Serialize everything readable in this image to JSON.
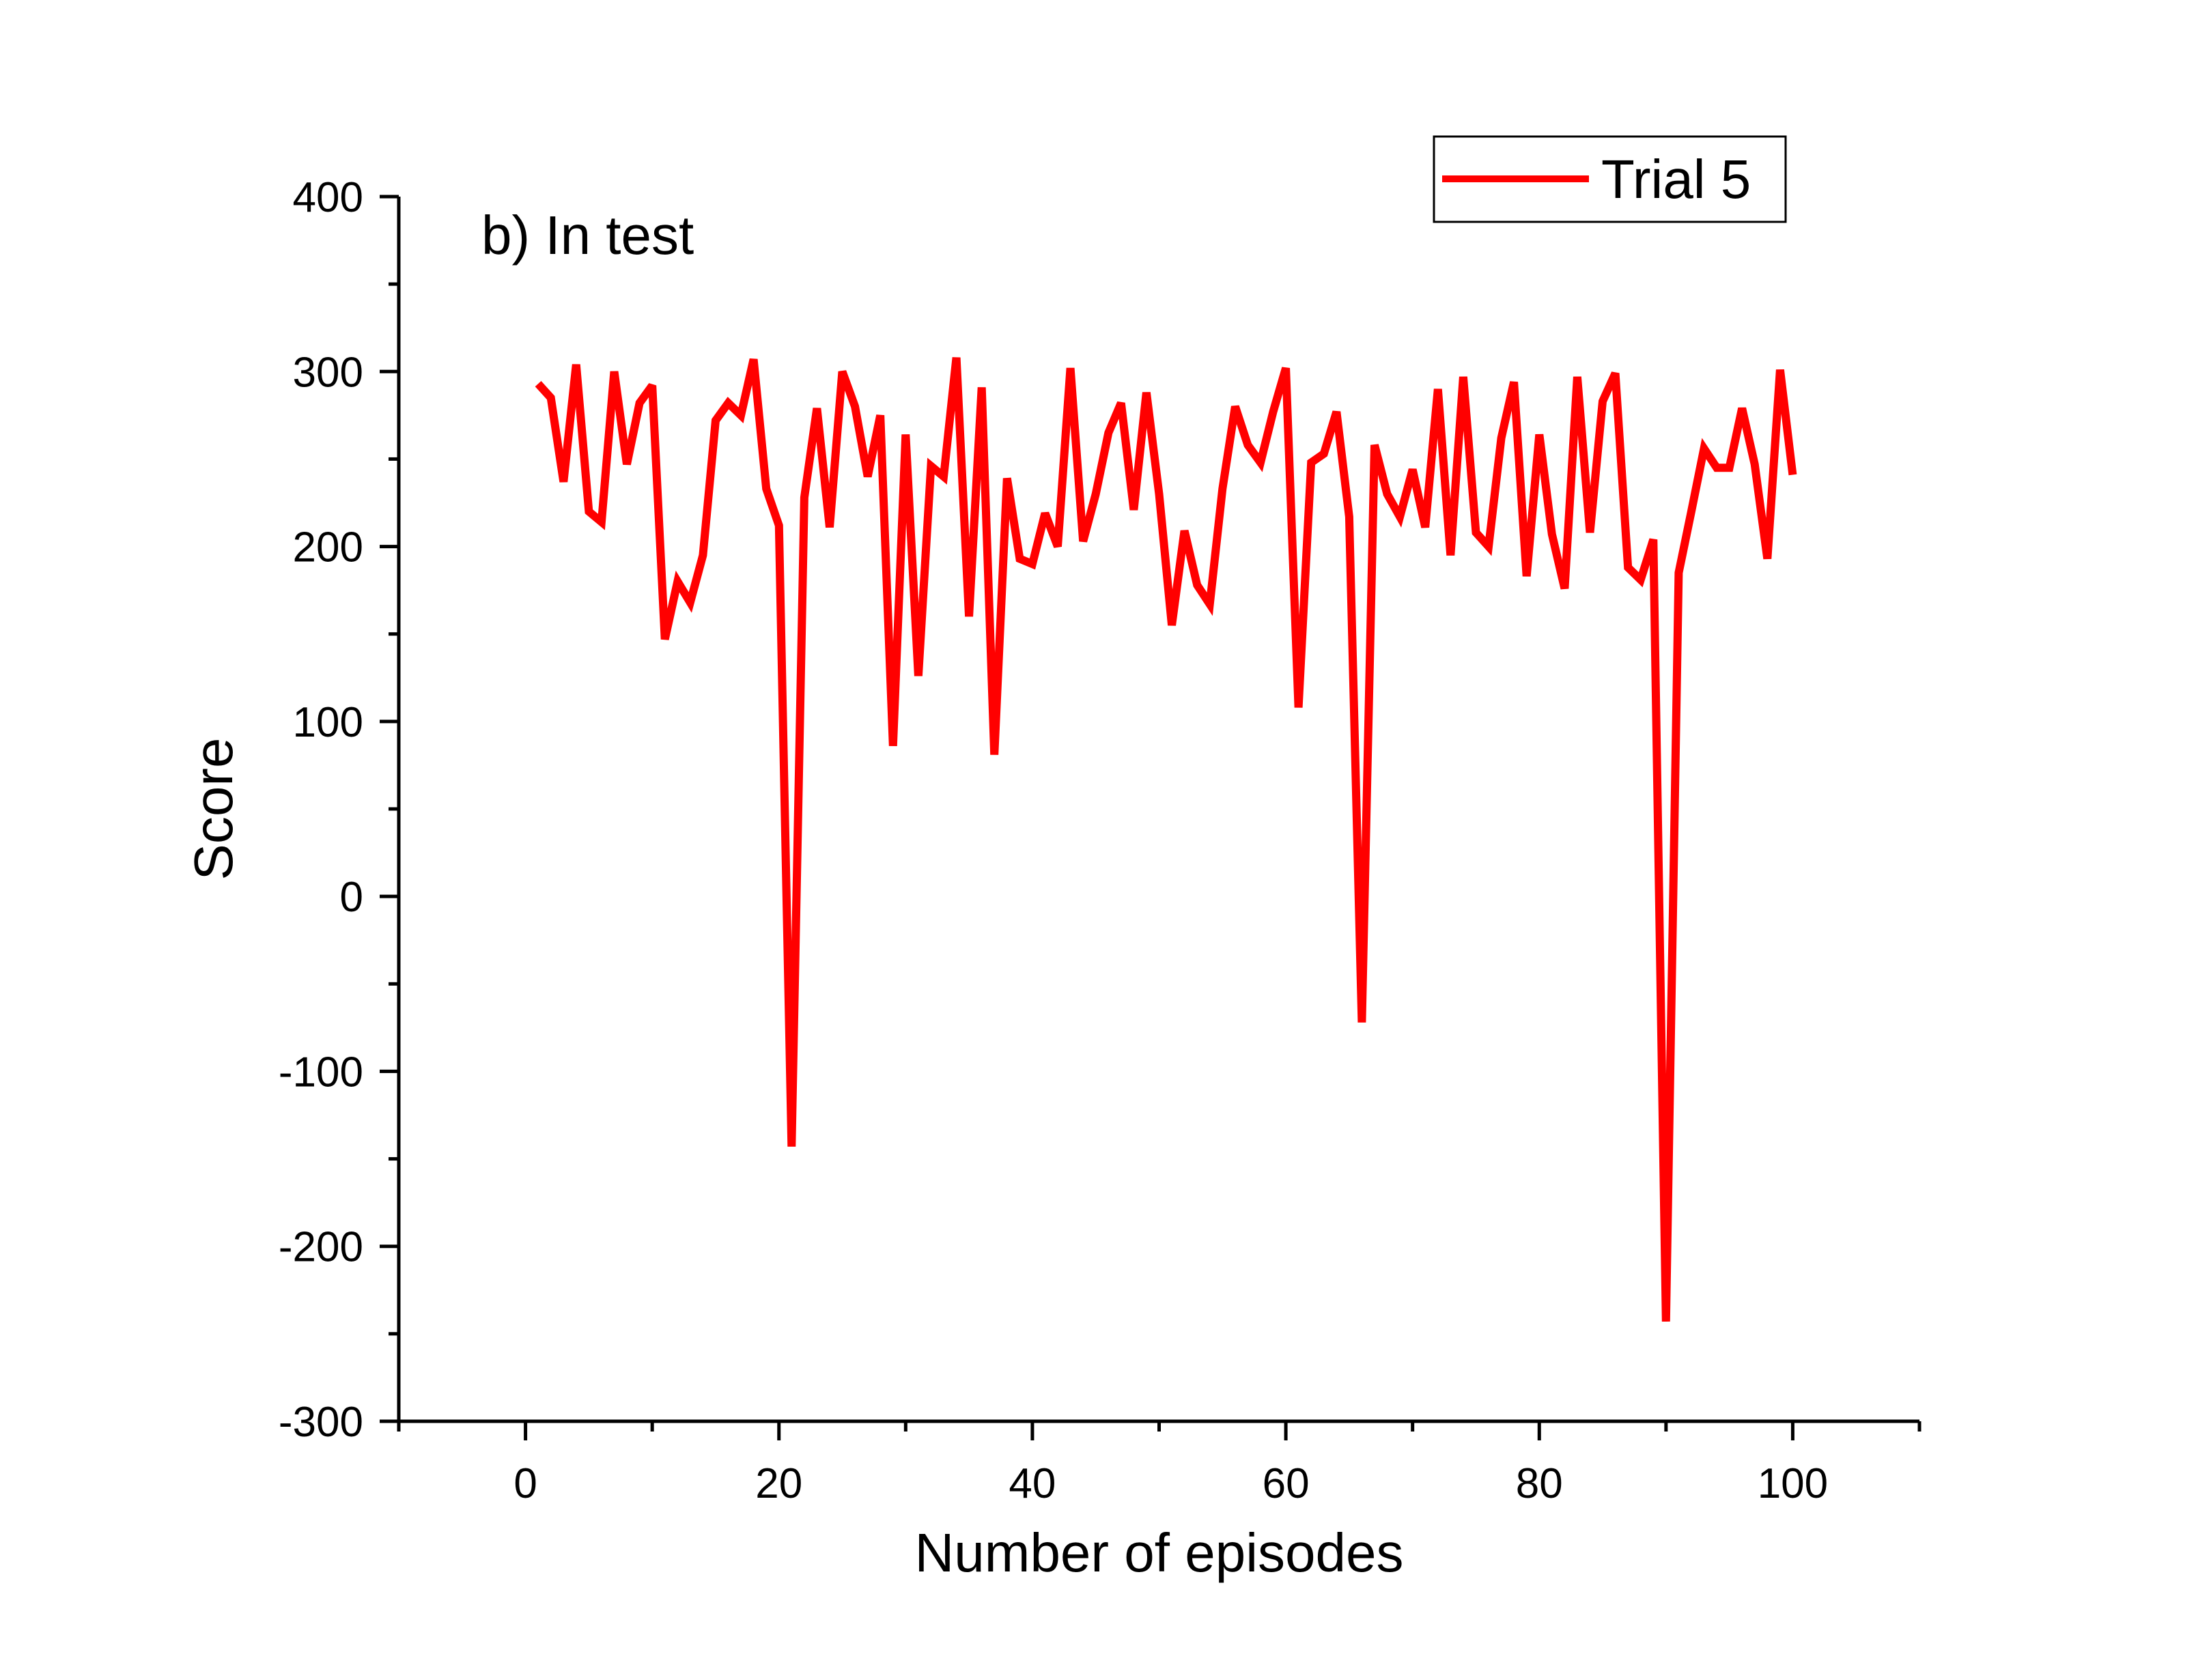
{
  "chart_data": {
    "type": "line",
    "title": "",
    "annotation": "b) In test",
    "xlabel": "Number of episodes",
    "ylabel": "Score",
    "xlim": [
      -10,
      110
    ],
    "ylim": [
      -300,
      400
    ],
    "x_ticks": [
      0,
      20,
      40,
      60,
      80,
      100
    ],
    "x_tick_labels": [
      "0",
      "20",
      "40",
      "60",
      "80",
      "100"
    ],
    "y_ticks": [
      -300,
      -200,
      -100,
      0,
      100,
      200,
      300,
      400
    ],
    "y_tick_labels": [
      "-300",
      "-200",
      "-100",
      "0",
      "100",
      "200",
      "300",
      "400"
    ],
    "grid": false,
    "legend_position": "top-right",
    "series": [
      {
        "name": "Trial 5",
        "color": "#ff0000",
        "x": [
          1,
          2,
          3,
          4,
          5,
          6,
          7,
          8,
          9,
          10,
          11,
          12,
          13,
          14,
          15,
          16,
          17,
          18,
          19,
          20,
          21,
          22,
          23,
          24,
          25,
          26,
          27,
          28,
          29,
          30,
          31,
          32,
          33,
          34,
          35,
          36,
          37,
          38,
          39,
          40,
          41,
          42,
          43,
          44,
          45,
          46,
          47,
          48,
          49,
          50,
          51,
          52,
          53,
          54,
          55,
          56,
          57,
          58,
          59,
          60,
          61,
          62,
          63,
          64,
          65,
          66,
          67,
          68,
          69,
          70,
          71,
          72,
          73,
          74,
          75,
          76,
          77,
          78,
          79,
          80,
          81,
          82,
          83,
          84,
          85,
          86,
          87,
          88,
          89,
          90,
          91,
          92,
          93,
          94,
          95,
          96,
          97,
          98,
          99,
          100
        ],
        "values": [
          293,
          285,
          237,
          304,
          220,
          214,
          300,
          247,
          282,
          292,
          147,
          180,
          168,
          195,
          272,
          282,
          275,
          307,
          233,
          212,
          -143,
          228,
          279,
          211,
          300,
          280,
          240,
          275,
          86,
          264,
          126,
          246,
          240,
          308,
          160,
          291,
          81,
          239,
          193,
          190,
          219,
          200,
          302,
          203,
          230,
          265,
          282,
          221,
          288,
          230,
          155,
          209,
          178,
          167,
          233,
          280,
          258,
          248,
          277,
          302,
          108,
          248,
          253,
          277,
          217,
          -72,
          258,
          230,
          217,
          244,
          211,
          290,
          195,
          297,
          208,
          200,
          262,
          294,
          183,
          264,
          207,
          176,
          297,
          208,
          283,
          299,
          188,
          181,
          204,
          -243,
          185,
          220,
          256,
          245,
          245,
          279,
          247,
          193,
          301,
          241
        ]
      }
    ]
  }
}
